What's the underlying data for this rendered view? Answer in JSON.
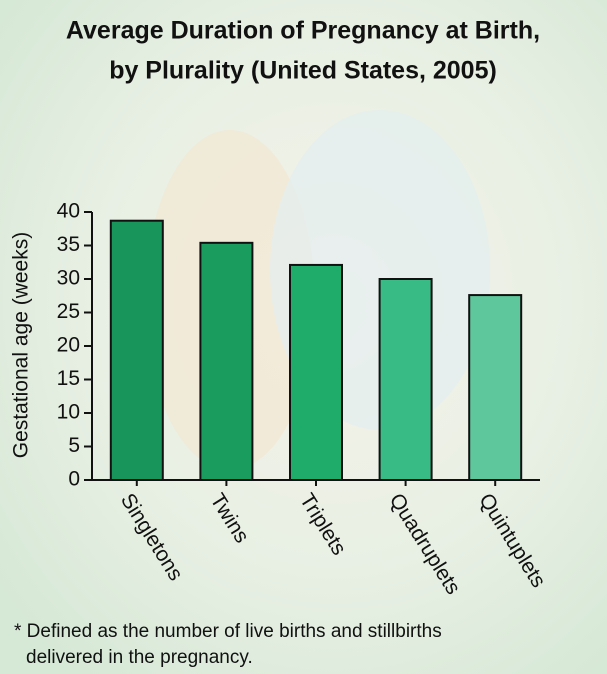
{
  "chart_data": {
    "type": "bar",
    "title": [
      "Average Duration of Pregnancy at Birth,",
      "by Plurality (United States, 2005)"
    ],
    "y_label": "Gestational age (weeks)",
    "categories": [
      "Singletons",
      "Twins",
      "Triplets",
      "Quadruplets",
      "Quintuplets"
    ],
    "values": [
      38.7,
      35.4,
      32.1,
      30.0,
      27.6
    ],
    "colors": [
      "#17955a",
      "#1a9c5f",
      "#1fac6b",
      "#38bb85",
      "#5fc79c"
    ],
    "ylim": [
      0,
      40
    ],
    "yticks": [
      0,
      5,
      10,
      15,
      20,
      25,
      30,
      35,
      40
    ],
    "note": [
      "* Defined as the number of live births and stillbirths",
      "delivered in the pregnancy."
    ]
  }
}
